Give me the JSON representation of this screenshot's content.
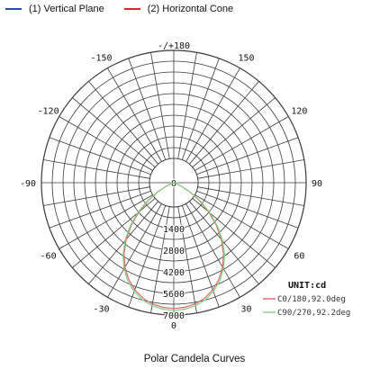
{
  "legend": [
    {
      "label": "(1) Vertical Plane",
      "color": "#1f4fa8"
    },
    {
      "label": "(2) Horizontal Cone",
      "color": "#d42a2a"
    }
  ],
  "caption": "Polar Candela Curves",
  "chart_data": {
    "type": "polar",
    "title": "",
    "angle_labels": [
      {
        "angle": 180,
        "text": "-/+180"
      },
      {
        "angle": 150,
        "text": "150"
      },
      {
        "angle": -150,
        "text": "-150"
      },
      {
        "angle": 120,
        "text": "120"
      },
      {
        "angle": -120,
        "text": "-120"
      },
      {
        "angle": 90,
        "text": "90"
      },
      {
        "angle": -90,
        "text": "-90"
      },
      {
        "angle": 60,
        "text": "60"
      },
      {
        "angle": -60,
        "text": "-60"
      },
      {
        "angle": 30,
        "text": "30"
      },
      {
        "angle": -30,
        "text": "-30"
      },
      {
        "angle": 0,
        "text": "0"
      }
    ],
    "radial_ticks": [
      "0",
      "1400",
      "2800",
      "4200",
      "5600",
      "7000"
    ],
    "radial_max": 7000,
    "unit_label": "UNIT:cd",
    "series": [
      {
        "name": "C0/180,92.0deg",
        "color": "#d96a6a",
        "points": [
          [
            0,
            6900
          ],
          [
            5,
            6860
          ],
          [
            10,
            6750
          ],
          [
            15,
            6550
          ],
          [
            20,
            6250
          ],
          [
            25,
            5850
          ],
          [
            30,
            5350
          ],
          [
            35,
            4750
          ],
          [
            40,
            4050
          ],
          [
            45,
            3300
          ],
          [
            50,
            2500
          ],
          [
            55,
            1700
          ],
          [
            60,
            1000
          ],
          [
            65,
            450
          ],
          [
            70,
            150
          ],
          [
            75,
            30
          ],
          [
            80,
            0
          ]
        ]
      },
      {
        "name": "C90/270,92.2deg",
        "color": "#7fd07f",
        "points": [
          [
            0,
            7000
          ],
          [
            5,
            6960
          ],
          [
            10,
            6850
          ],
          [
            15,
            6650
          ],
          [
            20,
            6350
          ],
          [
            25,
            5950
          ],
          [
            30,
            5450
          ],
          [
            35,
            4850
          ],
          [
            40,
            4150
          ],
          [
            45,
            3400
          ],
          [
            50,
            2600
          ],
          [
            55,
            1800
          ],
          [
            60,
            1050
          ],
          [
            65,
            480
          ],
          [
            70,
            160
          ],
          [
            75,
            35
          ],
          [
            80,
            0
          ]
        ]
      }
    ]
  }
}
